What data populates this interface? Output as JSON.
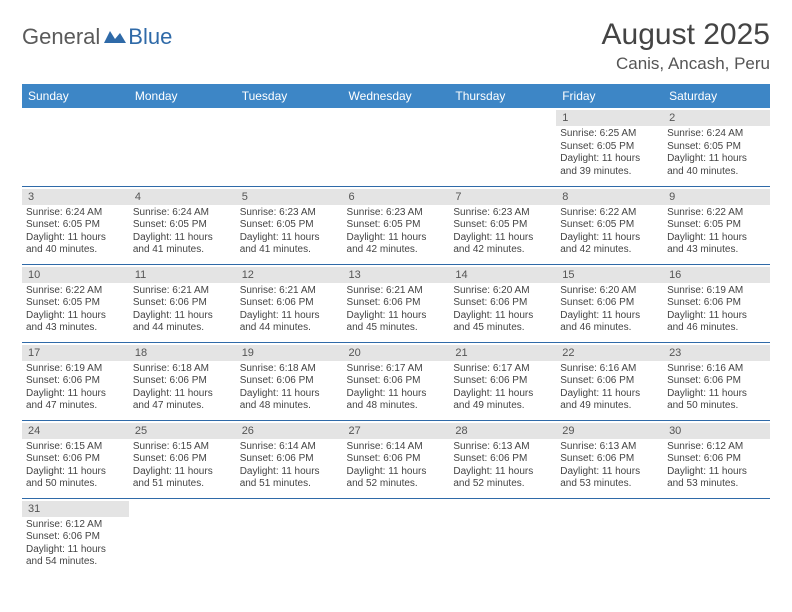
{
  "brand": {
    "general": "General",
    "blue": "Blue"
  },
  "title": {
    "month_year": "August 2025",
    "location": "Canis, Ancash, Peru"
  },
  "colors": {
    "header_bg": "#3d86c6",
    "header_fg": "#ffffff",
    "daynum_bg": "#e4e4e4",
    "row_border": "#2f6aa8",
    "text": "#444444",
    "logo_gray": "#5a5a5a",
    "logo_blue": "#2f6aa8"
  },
  "day_headers": [
    "Sunday",
    "Monday",
    "Tuesday",
    "Wednesday",
    "Thursday",
    "Friday",
    "Saturday"
  ],
  "weeks": [
    [
      null,
      null,
      null,
      null,
      null,
      {
        "n": "1",
        "rise": "6:25 AM",
        "set": "6:05 PM",
        "dl": "11 hours and 39 minutes."
      },
      {
        "n": "2",
        "rise": "6:24 AM",
        "set": "6:05 PM",
        "dl": "11 hours and 40 minutes."
      }
    ],
    [
      {
        "n": "3",
        "rise": "6:24 AM",
        "set": "6:05 PM",
        "dl": "11 hours and 40 minutes."
      },
      {
        "n": "4",
        "rise": "6:24 AM",
        "set": "6:05 PM",
        "dl": "11 hours and 41 minutes."
      },
      {
        "n": "5",
        "rise": "6:23 AM",
        "set": "6:05 PM",
        "dl": "11 hours and 41 minutes."
      },
      {
        "n": "6",
        "rise": "6:23 AM",
        "set": "6:05 PM",
        "dl": "11 hours and 42 minutes."
      },
      {
        "n": "7",
        "rise": "6:23 AM",
        "set": "6:05 PM",
        "dl": "11 hours and 42 minutes."
      },
      {
        "n": "8",
        "rise": "6:22 AM",
        "set": "6:05 PM",
        "dl": "11 hours and 42 minutes."
      },
      {
        "n": "9",
        "rise": "6:22 AM",
        "set": "6:05 PM",
        "dl": "11 hours and 43 minutes."
      }
    ],
    [
      {
        "n": "10",
        "rise": "6:22 AM",
        "set": "6:05 PM",
        "dl": "11 hours and 43 minutes."
      },
      {
        "n": "11",
        "rise": "6:21 AM",
        "set": "6:06 PM",
        "dl": "11 hours and 44 minutes."
      },
      {
        "n": "12",
        "rise": "6:21 AM",
        "set": "6:06 PM",
        "dl": "11 hours and 44 minutes."
      },
      {
        "n": "13",
        "rise": "6:21 AM",
        "set": "6:06 PM",
        "dl": "11 hours and 45 minutes."
      },
      {
        "n": "14",
        "rise": "6:20 AM",
        "set": "6:06 PM",
        "dl": "11 hours and 45 minutes."
      },
      {
        "n": "15",
        "rise": "6:20 AM",
        "set": "6:06 PM",
        "dl": "11 hours and 46 minutes."
      },
      {
        "n": "16",
        "rise": "6:19 AM",
        "set": "6:06 PM",
        "dl": "11 hours and 46 minutes."
      }
    ],
    [
      {
        "n": "17",
        "rise": "6:19 AM",
        "set": "6:06 PM",
        "dl": "11 hours and 47 minutes."
      },
      {
        "n": "18",
        "rise": "6:18 AM",
        "set": "6:06 PM",
        "dl": "11 hours and 47 minutes."
      },
      {
        "n": "19",
        "rise": "6:18 AM",
        "set": "6:06 PM",
        "dl": "11 hours and 48 minutes."
      },
      {
        "n": "20",
        "rise": "6:17 AM",
        "set": "6:06 PM",
        "dl": "11 hours and 48 minutes."
      },
      {
        "n": "21",
        "rise": "6:17 AM",
        "set": "6:06 PM",
        "dl": "11 hours and 49 minutes."
      },
      {
        "n": "22",
        "rise": "6:16 AM",
        "set": "6:06 PM",
        "dl": "11 hours and 49 minutes."
      },
      {
        "n": "23",
        "rise": "6:16 AM",
        "set": "6:06 PM",
        "dl": "11 hours and 50 minutes."
      }
    ],
    [
      {
        "n": "24",
        "rise": "6:15 AM",
        "set": "6:06 PM",
        "dl": "11 hours and 50 minutes."
      },
      {
        "n": "25",
        "rise": "6:15 AM",
        "set": "6:06 PM",
        "dl": "11 hours and 51 minutes."
      },
      {
        "n": "26",
        "rise": "6:14 AM",
        "set": "6:06 PM",
        "dl": "11 hours and 51 minutes."
      },
      {
        "n": "27",
        "rise": "6:14 AM",
        "set": "6:06 PM",
        "dl": "11 hours and 52 minutes."
      },
      {
        "n": "28",
        "rise": "6:13 AM",
        "set": "6:06 PM",
        "dl": "11 hours and 52 minutes."
      },
      {
        "n": "29",
        "rise": "6:13 AM",
        "set": "6:06 PM",
        "dl": "11 hours and 53 minutes."
      },
      {
        "n": "30",
        "rise": "6:12 AM",
        "set": "6:06 PM",
        "dl": "11 hours and 53 minutes."
      }
    ],
    [
      {
        "n": "31",
        "rise": "6:12 AM",
        "set": "6:06 PM",
        "dl": "11 hours and 54 minutes."
      },
      null,
      null,
      null,
      null,
      null,
      null
    ]
  ],
  "labels": {
    "sunrise": "Sunrise: ",
    "sunset": "Sunset: ",
    "daylight": "Daylight: "
  }
}
